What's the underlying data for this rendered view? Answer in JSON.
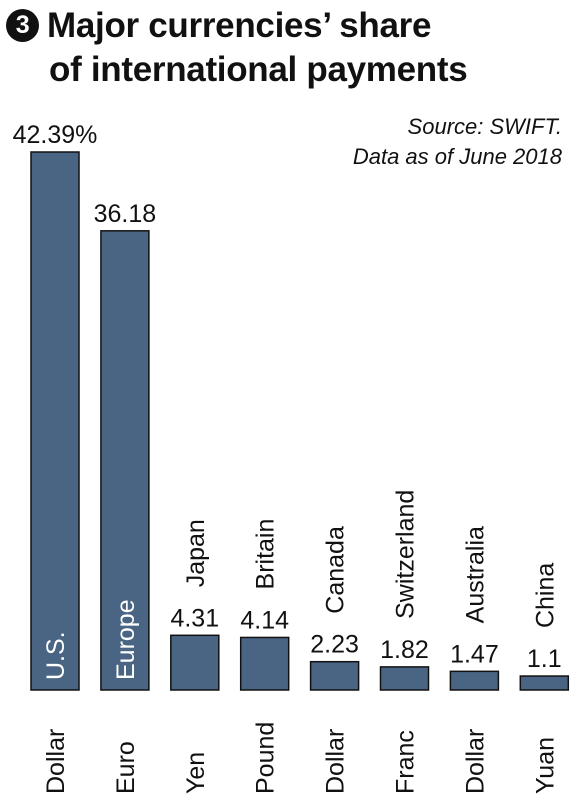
{
  "header": {
    "badge": "3",
    "title_line1": "Major currencies’ share",
    "title_line2": "of international payments"
  },
  "source": {
    "line1": "Source: SWIFT.",
    "line2": "Data as of June 2018"
  },
  "chart_data": {
    "type": "bar",
    "title": "Major currencies’ share of international payments",
    "bar_color": "#4a6583",
    "ylim": [
      0,
      42.39
    ],
    "bars": [
      {
        "country": "U.S.",
        "currency": "Dollar",
        "value": 42.39,
        "label": "42.39%"
      },
      {
        "country": "Europe",
        "currency": "Euro",
        "value": 36.18,
        "label": "36.18"
      },
      {
        "country": "Japan",
        "currency": "Yen",
        "value": 4.31,
        "label": "4.31"
      },
      {
        "country": "Britain",
        "currency": "Pound",
        "value": 4.14,
        "label": "4.14"
      },
      {
        "country": "Canada",
        "currency": "Dollar",
        "value": 2.23,
        "label": "2.23"
      },
      {
        "country": "Switzerland",
        "currency": "Franc",
        "value": 1.82,
        "label": "1.82"
      },
      {
        "country": "Australia",
        "currency": "Dollar",
        "value": 1.47,
        "label": "1.47"
      },
      {
        "country": "China",
        "currency": "Yuan",
        "value": 1.1,
        "label": "1.1"
      }
    ]
  }
}
